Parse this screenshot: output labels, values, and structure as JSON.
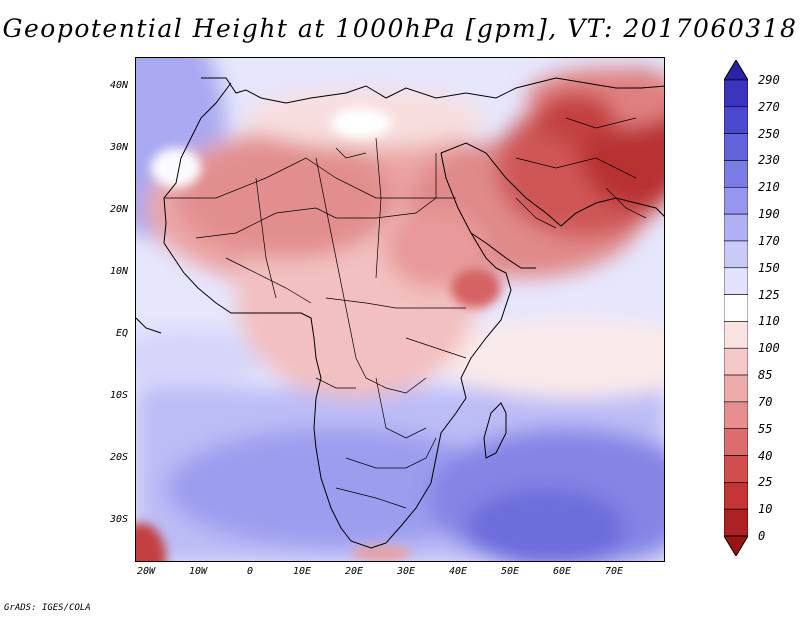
{
  "title": "Geopotential Height at 1000hPa [gpm], VT: 2017060318",
  "y_axis_labels": [
    "40N",
    "30N",
    "20N",
    "10N",
    "EQ",
    "10S",
    "20S",
    "30S"
  ],
  "x_axis_labels": [
    "20W",
    "10W",
    "0",
    "10E",
    "20E",
    "30E",
    "40E",
    "50E",
    "60E",
    "70E"
  ],
  "colorbar": {
    "labels": [
      "290",
      "270",
      "250",
      "230",
      "210",
      "190",
      "170",
      "150",
      "125",
      "110",
      "100",
      "85",
      "70",
      "55",
      "40",
      "25",
      "10",
      "0"
    ],
    "colors": [
      "#2a23a8",
      "#3a34bf",
      "#4c48cf",
      "#6363dc",
      "#7b7be5",
      "#9696ee",
      "#b0b0f4",
      "#cacaf8",
      "#e2e2fc",
      "#ffffff",
      "#fbe3e3",
      "#f5c7c7",
      "#eeabab",
      "#e68d8d",
      "#dd6d6d",
      "#d24d4d",
      "#c43434",
      "#ac2121",
      "#9a1414"
    ]
  },
  "credit": "GrADS: IGES/COLA"
}
